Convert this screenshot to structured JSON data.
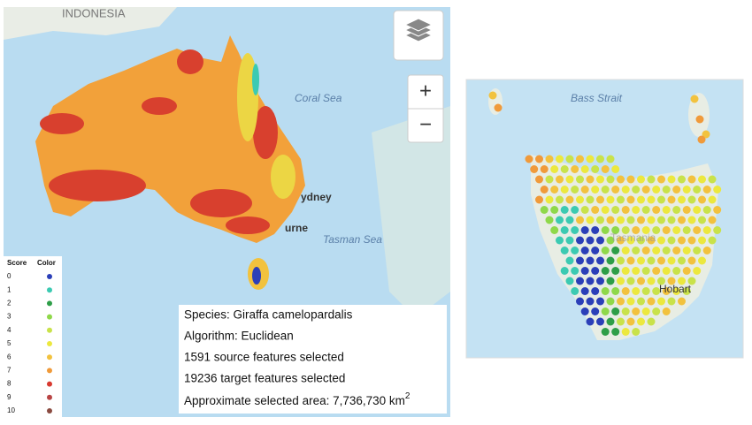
{
  "map_left": {
    "labels": {
      "country": "INDONESIA",
      "sea1": "Coral Sea",
      "sea2": "Tasman Sea",
      "city1": "ydney",
      "city2": "urne"
    },
    "zoom_in": "+",
    "zoom_out": "−"
  },
  "legend": {
    "header_score": "Score",
    "header_color": "Color",
    "items": [
      {
        "score": 0,
        "color": "#2b3fb8"
      },
      {
        "score": 1,
        "color": "#3ccab2"
      },
      {
        "score": 2,
        "color": "#2e9e48"
      },
      {
        "score": 3,
        "color": "#8fd84a"
      },
      {
        "score": 4,
        "color": "#c9e24a"
      },
      {
        "score": 5,
        "color": "#ece83e"
      },
      {
        "score": 6,
        "color": "#f2c23e"
      },
      {
        "score": 7,
        "color": "#f09a3a"
      },
      {
        "score": 8,
        "color": "#d83a30"
      },
      {
        "score": 9,
        "color": "#b84444"
      },
      {
        "score": 10,
        "color": "#8a4a40"
      }
    ]
  },
  "info": {
    "species": "Species: Giraffa camelopardalis",
    "algorithm": "Algorithm: Euclidean",
    "source": "1591 source features selected",
    "target": "19236 target features selected",
    "area": "Approximate selected area: 7,736,730 km",
    "area_sup": "2"
  },
  "map_right": {
    "labels": {
      "strait": "Bass Strait",
      "island": "Tasmania",
      "city": "Hobart"
    }
  }
}
